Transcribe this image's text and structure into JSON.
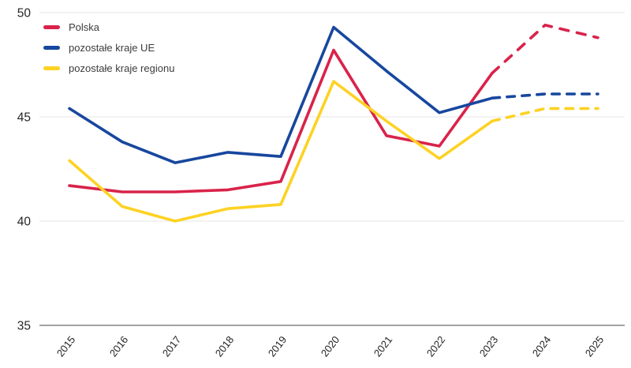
{
  "chart_data": {
    "type": "line",
    "x_labels": [
      "2015",
      "2016",
      "2017",
      "2018",
      "2019",
      "2020",
      "2021",
      "2022",
      "2023",
      "2024",
      "2025"
    ],
    "y_ticks": [
      35,
      40,
      45,
      50
    ],
    "ylim": [
      35,
      50
    ],
    "grid": "horizontal-light-gray",
    "legend_position": "top-left",
    "forecast_start_index": 8,
    "forecast_style": "dashed",
    "series": [
      {
        "name": "Polska",
        "color": "#d9234a",
        "values": [
          41.7,
          41.4,
          41.4,
          41.5,
          41.9,
          48.2,
          44.1,
          43.6,
          47.1,
          49.4,
          48.8
        ]
      },
      {
        "name": "pozostałe kraje UE",
        "color": "#17479e",
        "values": [
          45.4,
          43.8,
          42.8,
          43.3,
          43.1,
          49.3,
          47.2,
          45.2,
          45.9,
          46.1,
          46.1
        ]
      },
      {
        "name": "pozostałe kraje regionu",
        "color": "#fdd223",
        "values": [
          42.9,
          40.7,
          40.0,
          40.6,
          40.8,
          46.7,
          44.8,
          43.0,
          44.8,
          45.4,
          45.4
        ]
      }
    ]
  },
  "axes": {
    "grid_color": "#e9e9e9",
    "axis_color": "#a3a3a3",
    "tick_label_color": "#262626"
  }
}
